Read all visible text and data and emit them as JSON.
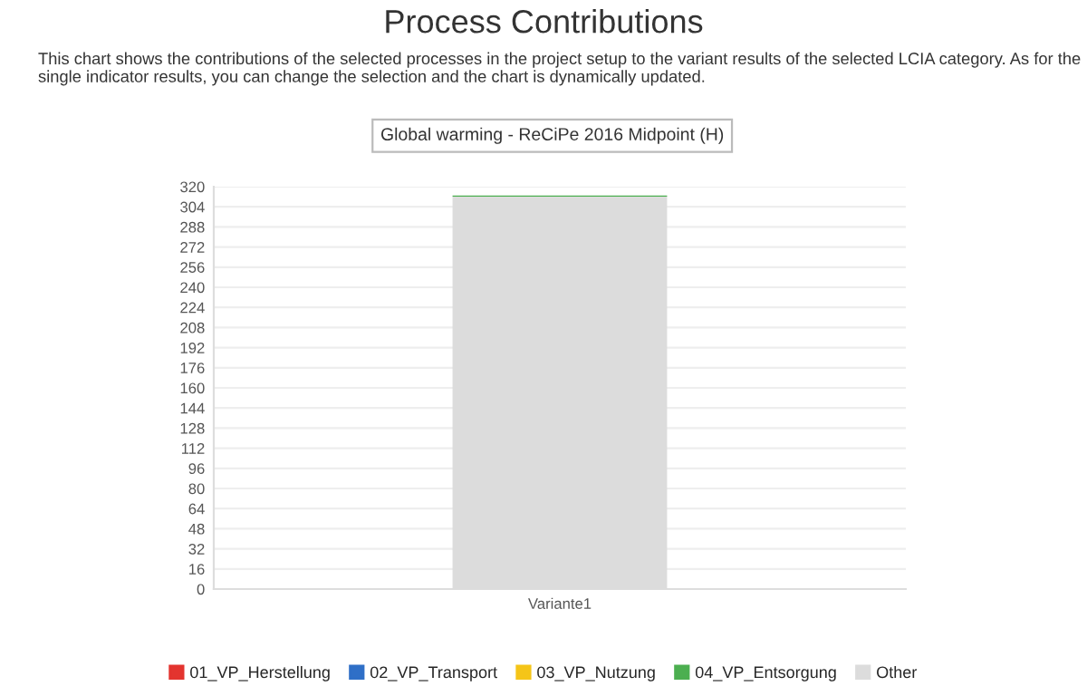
{
  "chart_data": {
    "type": "bar",
    "title": "Process Contributions",
    "subtitle": "This chart shows the contributions of the selected processes in the project setup to the variant results of the selected LCIA category. As for the single indicator results, you can change the selection and the chart is dynamically updated.",
    "annotations": [
      "Global warming - ReCiPe 2016 Midpoint (H)"
    ],
    "categories": [
      "Variante1"
    ],
    "stacked": true,
    "series": [
      {
        "name": "Other",
        "color": "#dcdcdc",
        "values": [
          312
        ]
      },
      {
        "name": "04_VP_Entsorgung",
        "color": "#4caf50",
        "values": [
          1
        ]
      },
      {
        "name": "03_VP_Nutzung",
        "color": "#f5c518",
        "values": [
          0
        ]
      },
      {
        "name": "02_VP_Transport",
        "color": "#2f6fc7",
        "values": [
          0
        ]
      },
      {
        "name": "01_VP_Herstellung",
        "color": "#e3342f",
        "values": [
          0
        ]
      }
    ],
    "ylim": [
      0,
      320
    ],
    "yticks": [
      0,
      16,
      32,
      48,
      64,
      80,
      96,
      112,
      128,
      144,
      160,
      176,
      192,
      208,
      224,
      240,
      256,
      272,
      288,
      304,
      320
    ],
    "grid": "y",
    "legend": "bottom"
  }
}
